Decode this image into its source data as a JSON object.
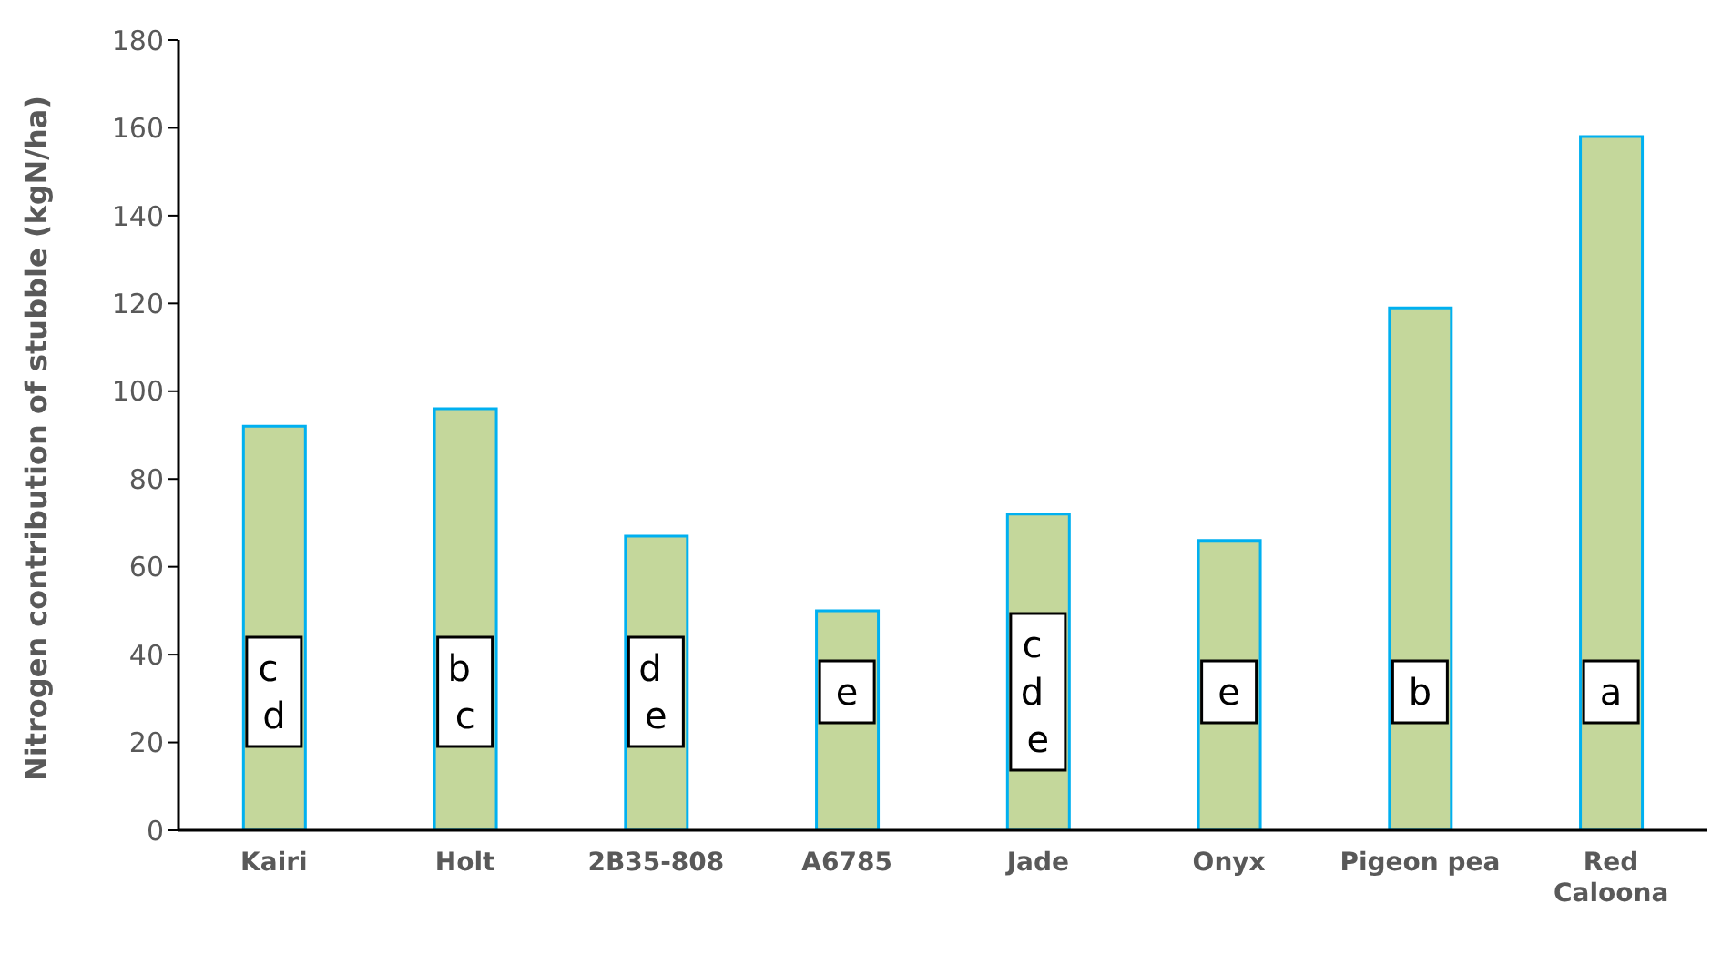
{
  "chart_data": {
    "type": "bar",
    "ylabel": "Nitrogen contribution of stubble (kgN/ha)",
    "categories": [
      "Kairi",
      "Holt",
      "2B35-808",
      "A6785",
      "Jade",
      "Onyx",
      "Pigeon pea",
      "Red Caloona"
    ],
    "values": [
      92,
      96,
      67,
      50,
      72,
      66,
      119,
      158
    ],
    "color": "#c4d79b",
    "ylim": [
      0,
      180
    ],
    "yticks": [
      0,
      20,
      40,
      60,
      80,
      100,
      120,
      140,
      160,
      180
    ],
    "grid": false,
    "annotations": [
      "c d",
      "b c",
      "d e",
      "e",
      "c d e",
      "e",
      "b",
      "a"
    ]
  }
}
